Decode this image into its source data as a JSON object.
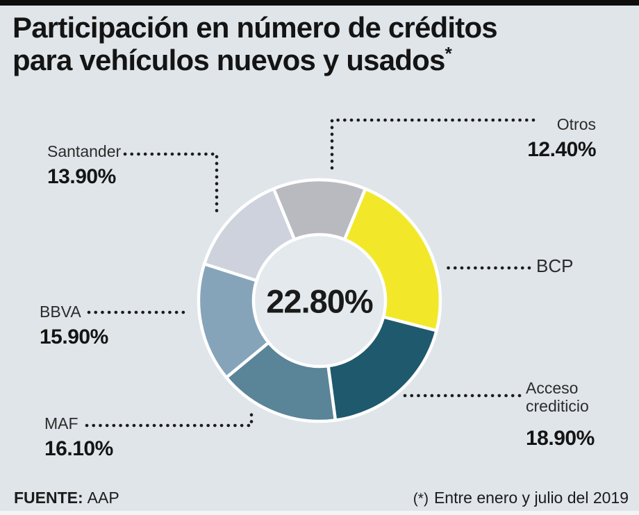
{
  "header": {
    "title_lines": [
      "Participación en número de créditos",
      "para vehículos nuevos y usados"
    ],
    "title_mark": "*"
  },
  "chart_data": {
    "type": "pie",
    "donut": true,
    "title": "Participación en número de créditos para vehículos nuevos y usados*",
    "center_label": "22.80%",
    "start_angle_deg": -22.32,
    "legend_position": "around-labels-with-dotted-leaders",
    "segments": [
      {
        "name": "Otros",
        "value": 12.4,
        "display": "12.40%",
        "color": "#b9babf"
      },
      {
        "name": "BCP",
        "value": 22.8,
        "display": "22.80%",
        "color": "#f2e829"
      },
      {
        "name": "Acceso crediticio",
        "value": 18.9,
        "display": "18.90%",
        "color": "#1f596d"
      },
      {
        "name": "MAF",
        "value": 16.1,
        "display": "16.10%",
        "color": "#5a8498"
      },
      {
        "name": "BBVA",
        "value": 15.9,
        "display": "15.90%",
        "color": "#86a4b9"
      },
      {
        "name": "Santander",
        "value": 13.9,
        "display": "13.90%",
        "color": "#cdd2dc"
      }
    ]
  },
  "footer": {
    "source_label": "FUENTE:",
    "source_value": "AAP",
    "note_mark": "(*)",
    "note_text": "Entre enero y julio del 2019"
  },
  "colors": {
    "background": "#dfe5e9",
    "top_bar": "#0d0d0d",
    "hole": "#e3e9ec",
    "leader": "#1c1c1c",
    "segment_stroke": "#ffffff"
  }
}
